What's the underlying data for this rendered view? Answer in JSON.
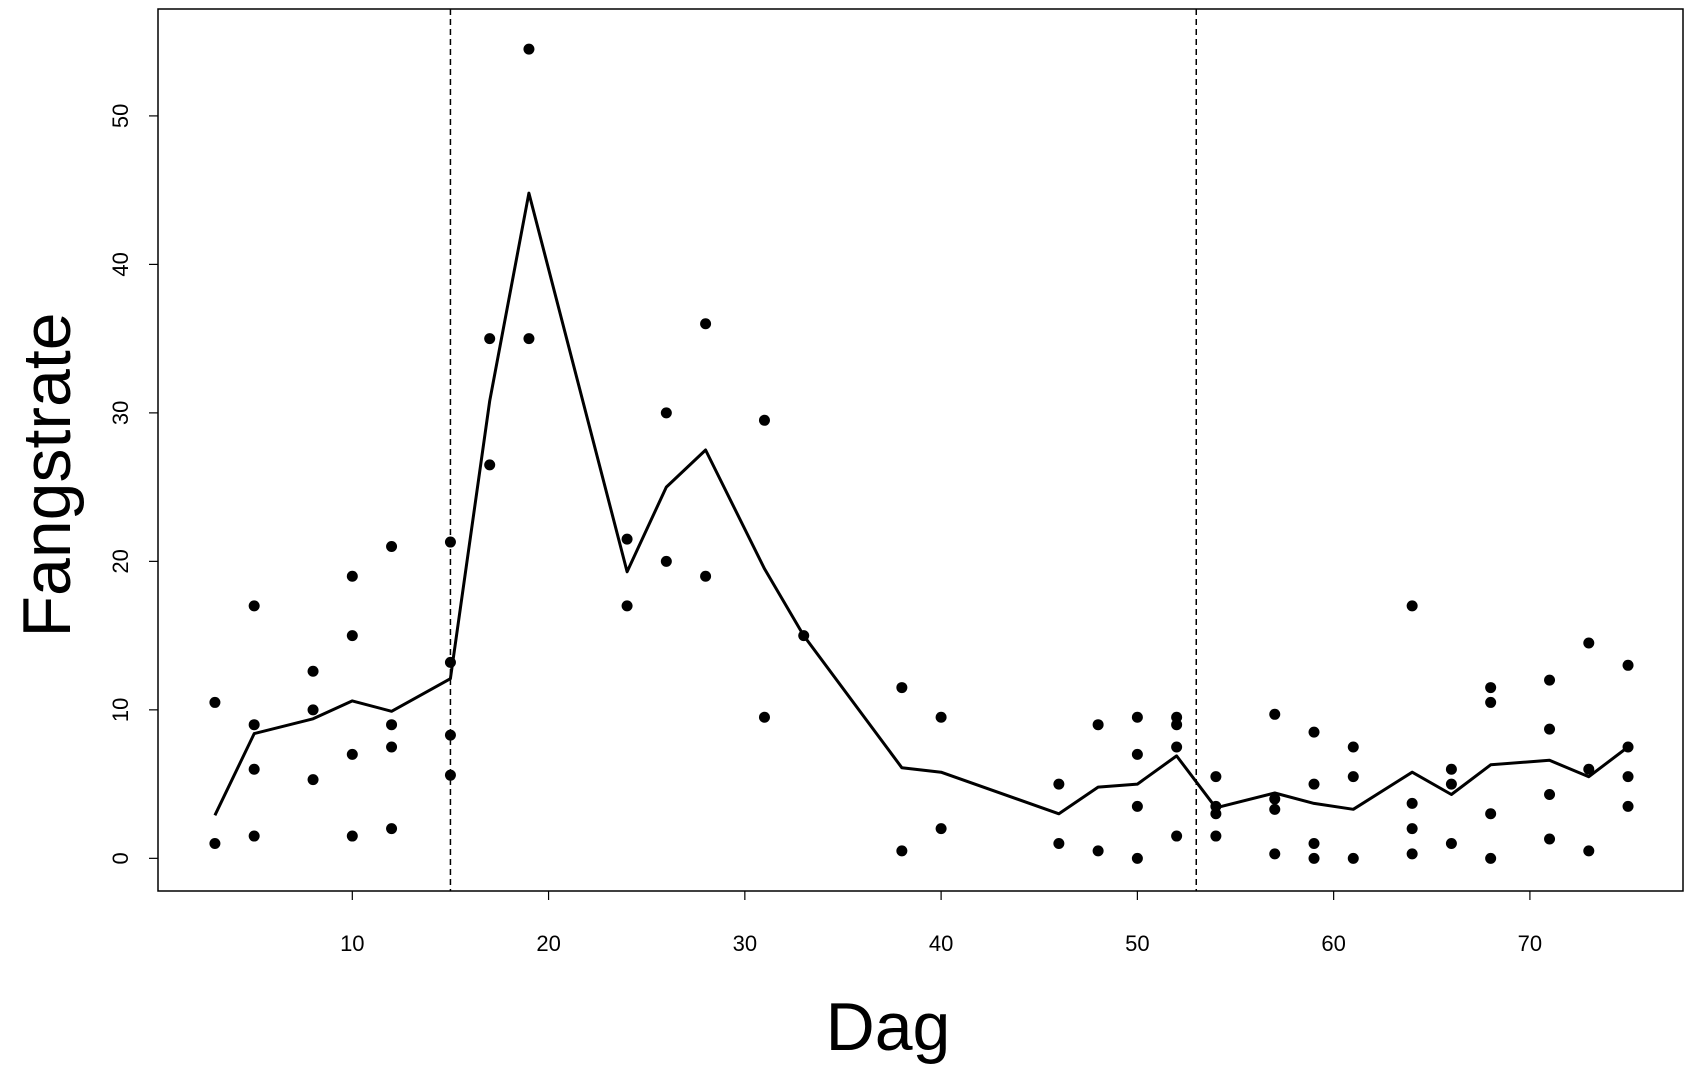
{
  "chart_data": {
    "type": "scatter",
    "xlabel": "Dag",
    "ylabel": "Fangstrate",
    "xlim": [
      0.1,
      77.8
    ],
    "ylim": [
      -2.2,
      57.2
    ],
    "xticks": [
      10,
      20,
      30,
      40,
      50,
      60,
      70
    ],
    "yticks": [
      0,
      10,
      20,
      30,
      40,
      50
    ],
    "vlines": [
      15,
      53
    ],
    "series": [
      {
        "kind": "points",
        "color": "#000000",
        "x": [
          3,
          3,
          5,
          5,
          5,
          5,
          8,
          8,
          8,
          10,
          10,
          10,
          10,
          12,
          12,
          12,
          12,
          15,
          15,
          15,
          15,
          17,
          17,
          19,
          19,
          24,
          24,
          26,
          26,
          28,
          28,
          31,
          31,
          33,
          38,
          38,
          40,
          40,
          46,
          46,
          48,
          48,
          50,
          50,
          50,
          50,
          52,
          52,
          52,
          52,
          54,
          54,
          54,
          54,
          57,
          57,
          57,
          57,
          59,
          59,
          59,
          59,
          61,
          61,
          61,
          64,
          64,
          64,
          64,
          66,
          66,
          66,
          68,
          68,
          68,
          68,
          71,
          71,
          71,
          71,
          73,
          73,
          73,
          75,
          75,
          75,
          75
        ],
        "values": [
          10.5,
          1,
          17,
          9,
          6,
          1.5,
          12.6,
          10,
          5.3,
          19,
          15,
          7,
          1.5,
          21,
          9,
          7.5,
          2,
          21.3,
          13.2,
          8.3,
          5.6,
          35,
          26.5,
          54.5,
          35,
          21.5,
          17,
          30,
          20,
          36,
          19,
          29.5,
          9.5,
          15,
          11.5,
          0.5,
          9.5,
          2,
          5,
          1,
          9,
          0.5,
          9.5,
          7,
          3.5,
          0,
          9.5,
          9,
          7.5,
          1.5,
          5.5,
          3.5,
          3,
          1.5,
          9.7,
          4,
          3.3,
          0.3,
          8.5,
          5,
          1,
          0,
          7.5,
          5.5,
          0,
          17,
          3.7,
          2,
          0.3,
          6,
          5,
          1,
          11.5,
          10.5,
          3,
          0,
          12,
          8.7,
          4.3,
          1.3,
          14.5,
          6,
          0.5,
          13,
          7.5,
          5.5,
          3.5
        ]
      },
      {
        "kind": "line",
        "color": "#000000",
        "x": [
          3,
          5,
          8,
          10,
          12,
          15,
          17,
          19,
          24,
          26,
          28,
          31,
          33,
          38,
          40,
          46,
          48,
          50,
          52,
          54,
          57,
          59,
          61,
          64,
          66,
          68,
          71,
          73,
          75
        ],
        "values": [
          2.9,
          8.4,
          9.4,
          10.6,
          9.9,
          12.1,
          30.8,
          44.8,
          19.3,
          25,
          27.5,
          19.5,
          15,
          6.1,
          5.8,
          3,
          4.8,
          5,
          6.9,
          3.4,
          4.4,
          3.7,
          3.3,
          5.8,
          4.3,
          6.3,
          6.6,
          5.5,
          7.5
        ]
      }
    ]
  }
}
